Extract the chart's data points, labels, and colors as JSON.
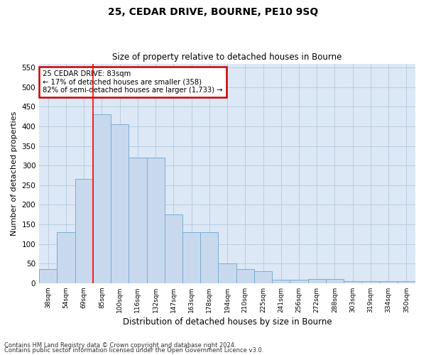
{
  "title1": "25, CEDAR DRIVE, BOURNE, PE10 9SQ",
  "title2": "Size of property relative to detached houses in Bourne",
  "xlabel": "Distribution of detached houses by size in Bourne",
  "ylabel": "Number of detached properties",
  "categories": [
    "38sqm",
    "54sqm",
    "69sqm",
    "85sqm",
    "100sqm",
    "116sqm",
    "132sqm",
    "147sqm",
    "163sqm",
    "178sqm",
    "194sqm",
    "210sqm",
    "225sqm",
    "241sqm",
    "256sqm",
    "272sqm",
    "288sqm",
    "303sqm",
    "319sqm",
    "334sqm",
    "350sqm"
  ],
  "values": [
    35,
    130,
    265,
    430,
    405,
    320,
    320,
    175,
    130,
    130,
    50,
    35,
    30,
    8,
    8,
    10,
    10,
    5,
    5,
    5,
    5
  ],
  "bar_color": "#c8d9ee",
  "bar_edge_color": "#7aadd4",
  "annotation_title": "25 CEDAR DRIVE: 83sqm",
  "annotation_line1": "← 17% of detached houses are smaller (358)",
  "annotation_line2": "82% of semi-detached houses are larger (1,733) →",
  "annotation_box_facecolor": "#ffffff",
  "annotation_box_edgecolor": "#cc0000",
  "footer1": "Contains HM Land Registry data © Crown copyright and database right 2024.",
  "footer2": "Contains public sector information licensed under the Open Government Licence v3.0.",
  "ylim": [
    0,
    560
  ],
  "yticks": [
    0,
    50,
    100,
    150,
    200,
    250,
    300,
    350,
    400,
    450,
    500,
    550
  ],
  "grid_color": "#b8cde0",
  "background_color": "#dce8f5",
  "red_line_bar_index": 3
}
